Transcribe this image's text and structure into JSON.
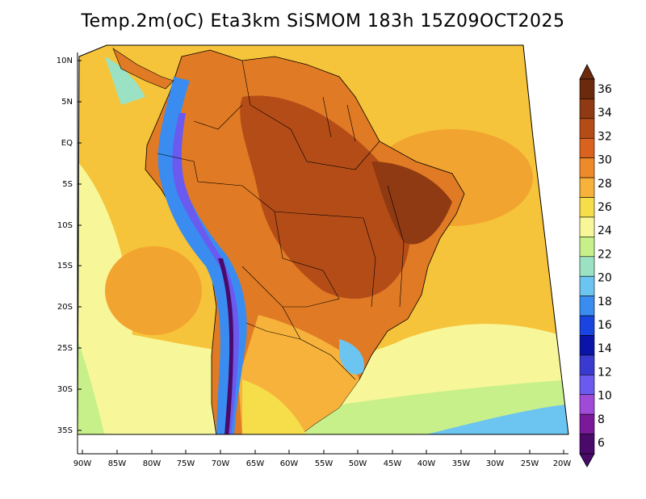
{
  "title": "Temp.2m(oC) Eta3km SiSMOM 183h 15Z09OCT2025",
  "lat_labels": [
    "10N",
    "5N",
    "EQ",
    "5S",
    "10S",
    "15S",
    "20S",
    "25S",
    "30S",
    "35S"
  ],
  "lon_labels": [
    "90W",
    "85W",
    "80W",
    "75W",
    "70W",
    "65W",
    "60W",
    "55W",
    "50W",
    "45W",
    "40W",
    "35W",
    "30W",
    "25W",
    "20W"
  ],
  "colorbar": {
    "labels": [
      "36",
      "34",
      "32",
      "30",
      "28",
      "26",
      "24",
      "22",
      "20",
      "18",
      "16",
      "14",
      "12",
      "10",
      "8",
      "6"
    ],
    "colors": [
      "#6b2a0e",
      "#8f3a12",
      "#b44c18",
      "#d9621e",
      "#ef8a2a",
      "#f6b23a",
      "#f6dd4a",
      "#f7f79a",
      "#c8f08a",
      "#9be2c4",
      "#6cc4f0",
      "#3a8cf0",
      "#1a44e0",
      "#0a14a8",
      "#3a3ad0",
      "#6a5af0",
      "#a04ad8",
      "#7a1a9a",
      "#4a0a6a"
    ]
  },
  "colors": {
    "ocean_base": "#f6c43a",
    "land_base": "#e07a24"
  }
}
